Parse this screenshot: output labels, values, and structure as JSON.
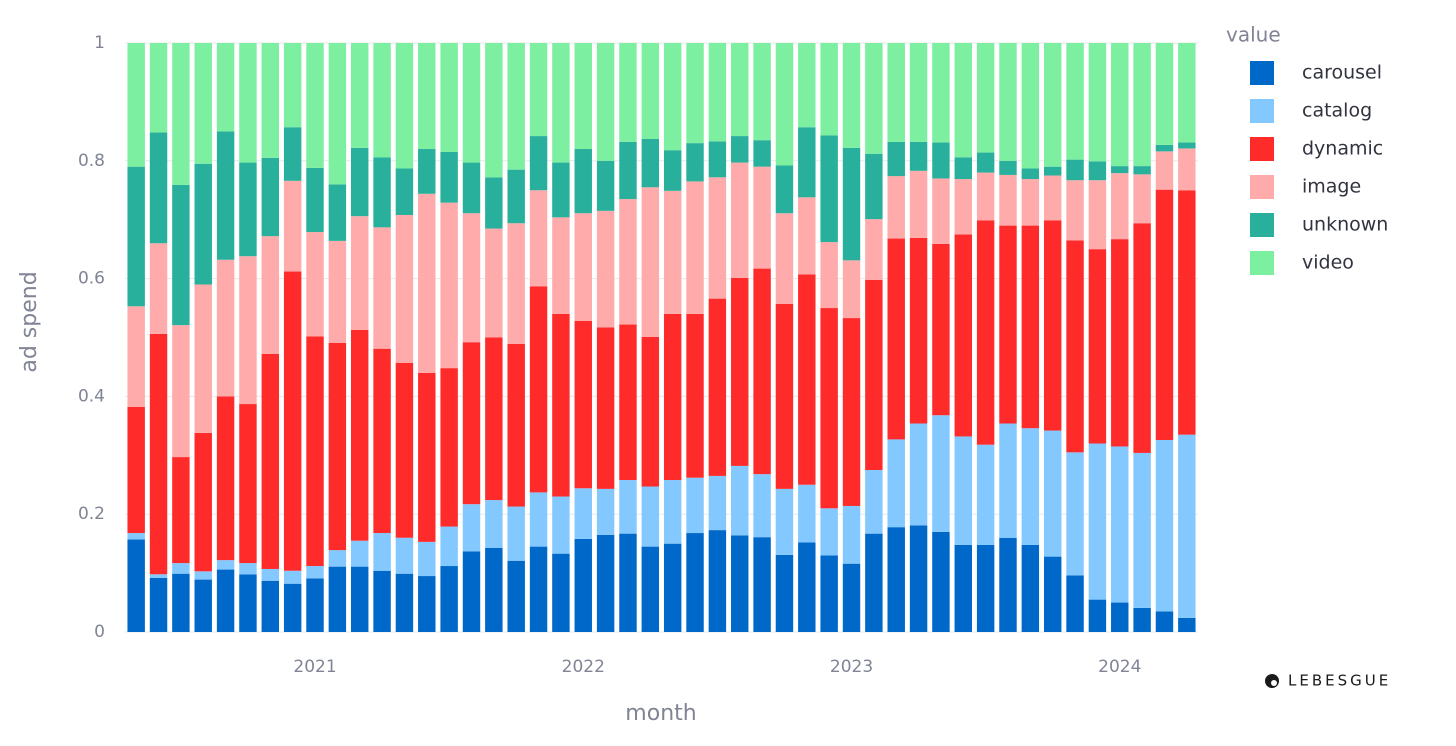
{
  "chart_data": {
    "type": "stacked_bar",
    "xlabel": "month",
    "ylabel": "ad spend",
    "legend_title": "value",
    "legend_position": "right",
    "grid": true,
    "watermark": "LEBESGUE",
    "categories": [
      null,
      null,
      null,
      null,
      null,
      null,
      null,
      null,
      "2021",
      null,
      null,
      null,
      null,
      null,
      null,
      null,
      null,
      null,
      null,
      null,
      "2022",
      null,
      null,
      null,
      null,
      null,
      null,
      null,
      null,
      null,
      null,
      null,
      "2023",
      null,
      null,
      null,
      null,
      null,
      null,
      null,
      null,
      null,
      null,
      null,
      "2024",
      null,
      null,
      null
    ],
    "ylim": [
      0,
      1
    ],
    "yticks": [
      0,
      0.2,
      0.4,
      0.6,
      0.8,
      1
    ],
    "series": [
      {
        "name": "carousel",
        "color": "#0068c9",
        "values": [
          0.157,
          0.092,
          0.099,
          0.089,
          0.106,
          0.098,
          0.087,
          0.082,
          0.091,
          0.111,
          0.111,
          0.104,
          0.099,
          0.095,
          0.112,
          0.137,
          0.143,
          0.121,
          0.145,
          0.133,
          0.158,
          0.165,
          0.167,
          0.145,
          0.15,
          0.168,
          0.173,
          0.164,
          0.161,
          0.131,
          0.152,
          0.13,
          0.116,
          0.167,
          0.178,
          0.181,
          0.17,
          0.148,
          0.148,
          0.16,
          0.148,
          0.128,
          0.096,
          0.055,
          0.05,
          0.041,
          0.035,
          0.024
        ]
      },
      {
        "name": "catalog",
        "color": "#83c9ff",
        "values": [
          0.011,
          0.006,
          0.018,
          0.014,
          0.016,
          0.019,
          0.02,
          0.022,
          0.021,
          0.028,
          0.044,
          0.064,
          0.061,
          0.058,
          0.067,
          0.08,
          0.081,
          0.092,
          0.092,
          0.097,
          0.086,
          0.078,
          0.091,
          0.102,
          0.108,
          0.094,
          0.092,
          0.118,
          0.107,
          0.112,
          0.098,
          0.08,
          0.098,
          0.108,
          0.149,
          0.173,
          0.198,
          0.184,
          0.17,
          0.194,
          0.198,
          0.214,
          0.209,
          0.265,
          0.265,
          0.263,
          0.291,
          0.311
        ]
      },
      {
        "name": "dynamic",
        "color": "#ff2b2b",
        "values": [
          0.214,
          0.408,
          0.18,
          0.235,
          0.278,
          0.27,
          0.365,
          0.508,
          0.39,
          0.352,
          0.358,
          0.313,
          0.297,
          0.287,
          0.269,
          0.275,
          0.276,
          0.276,
          0.35,
          0.31,
          0.284,
          0.274,
          0.264,
          0.254,
          0.282,
          0.278,
          0.301,
          0.319,
          0.349,
          0.314,
          0.357,
          0.34,
          0.319,
          0.323,
          0.341,
          0.315,
          0.291,
          0.343,
          0.381,
          0.336,
          0.344,
          0.357,
          0.36,
          0.33,
          0.352,
          0.39,
          0.425,
          0.415
        ]
      },
      {
        "name": "image",
        "color": "#ffabab",
        "values": [
          0.171,
          0.154,
          0.224,
          0.252,
          0.232,
          0.251,
          0.2,
          0.154,
          0.177,
          0.173,
          0.193,
          0.206,
          0.251,
          0.304,
          0.281,
          0.219,
          0.185,
          0.205,
          0.163,
          0.164,
          0.183,
          0.198,
          0.213,
          0.254,
          0.209,
          0.225,
          0.206,
          0.196,
          0.173,
          0.154,
          0.131,
          0.112,
          0.098,
          0.103,
          0.106,
          0.114,
          0.111,
          0.094,
          0.081,
          0.086,
          0.079,
          0.076,
          0.102,
          0.117,
          0.112,
          0.083,
          0.065,
          0.071
        ]
      },
      {
        "name": "unknown",
        "color": "#29b09d",
        "values": [
          0.237,
          0.188,
          0.238,
          0.205,
          0.218,
          0.159,
          0.133,
          0.091,
          0.109,
          0.096,
          0.116,
          0.119,
          0.079,
          0.076,
          0.086,
          0.086,
          0.087,
          0.091,
          0.092,
          0.093,
          0.109,
          0.085,
          0.097,
          0.082,
          0.069,
          0.065,
          0.061,
          0.045,
          0.045,
          0.081,
          0.119,
          0.181,
          0.191,
          0.111,
          0.058,
          0.049,
          0.061,
          0.037,
          0.034,
          0.024,
          0.018,
          0.015,
          0.035,
          0.032,
          0.012,
          0.014,
          0.011,
          0.01
        ]
      },
      {
        "name": "video",
        "color": "#7defa1",
        "values": [
          0.21,
          0.152,
          0.241,
          0.205,
          0.15,
          0.203,
          0.195,
          0.143,
          0.212,
          0.24,
          0.178,
          0.194,
          0.213,
          0.18,
          0.185,
          0.203,
          0.228,
          0.215,
          0.158,
          0.203,
          0.18,
          0.2,
          0.168,
          0.163,
          0.182,
          0.17,
          0.167,
          0.158,
          0.165,
          0.208,
          0.143,
          0.157,
          0.178,
          0.188,
          0.168,
          0.168,
          0.169,
          0.194,
          0.186,
          0.2,
          0.213,
          0.21,
          0.198,
          0.201,
          0.209,
          0.209,
          0.173,
          0.169
        ]
      }
    ]
  }
}
